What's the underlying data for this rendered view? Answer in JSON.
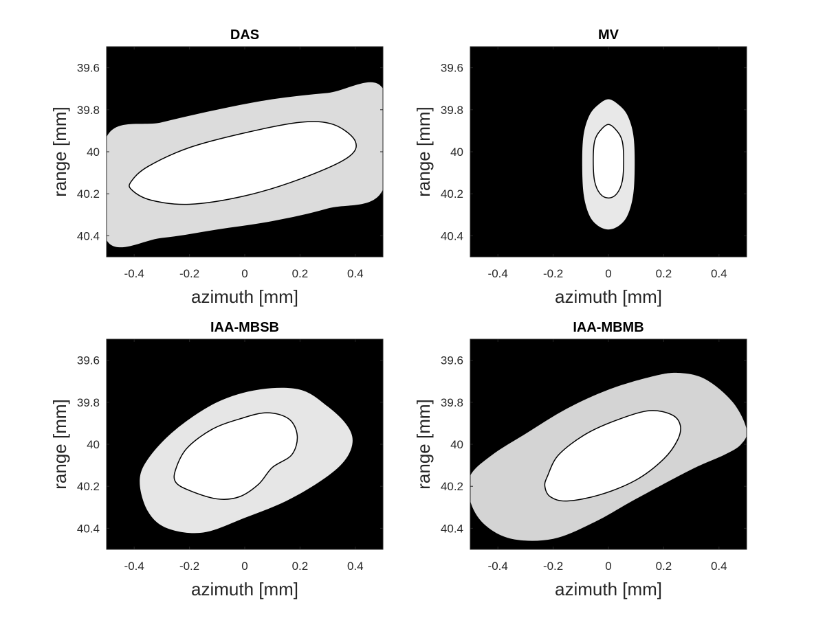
{
  "figure": {
    "background": "#ffffff",
    "axes_background": "#000000",
    "contour_color": "#000000"
  },
  "chart_data": [
    {
      "type": "contour",
      "title": "DAS",
      "xlabel": "azimuth [mm]",
      "ylabel": "range [mm]",
      "xlim": [
        -0.5,
        0.5
      ],
      "ylim": [
        39.5,
        40.5
      ],
      "y_reversed": true,
      "xticks": [
        -0.4,
        -0.2,
        0,
        0.2,
        0.4
      ],
      "xtick_labels": [
        "-0.4",
        "-0.2",
        "0",
        "0.2",
        "0.4"
      ],
      "yticks": [
        39.6,
        39.8,
        40,
        40.2,
        40.4
      ],
      "ytick_labels": [
        "39.6",
        "39.8",
        "40",
        "40.2",
        "40.4"
      ],
      "outer_region": {
        "fill": "#dcdcdc",
        "boundary": [
          [
            -0.5,
            39.93
          ],
          [
            -0.3,
            39.86
          ],
          [
            -0.1,
            39.8
          ],
          [
            0.1,
            39.75
          ],
          [
            0.3,
            39.72
          ],
          [
            0.5,
            39.7
          ],
          [
            0.5,
            40.18
          ],
          [
            0.3,
            40.27
          ],
          [
            0.1,
            40.33
          ],
          [
            -0.1,
            40.37
          ],
          [
            -0.3,
            40.41
          ],
          [
            -0.5,
            40.42
          ]
        ]
      },
      "inner_region": {
        "fill": "#ffffff",
        "boundary": [
          [
            -0.41,
            40.14
          ],
          [
            -0.35,
            40.07
          ],
          [
            -0.2,
            39.98
          ],
          [
            0.0,
            39.91
          ],
          [
            0.2,
            39.86
          ],
          [
            0.32,
            39.87
          ],
          [
            0.4,
            39.95
          ],
          [
            0.37,
            40.03
          ],
          [
            0.2,
            40.13
          ],
          [
            0.0,
            40.21
          ],
          [
            -0.2,
            40.25
          ],
          [
            -0.34,
            40.23
          ],
          [
            -0.41,
            40.18
          ]
        ]
      }
    },
    {
      "type": "contour",
      "title": "MV",
      "xlabel": "azimuth [mm]",
      "ylabel": "range [mm]",
      "xlim": [
        -0.5,
        0.5
      ],
      "ylim": [
        39.5,
        40.5
      ],
      "y_reversed": true,
      "xticks": [
        -0.4,
        -0.2,
        0,
        0.2,
        0.4
      ],
      "xtick_labels": [
        "-0.4",
        "-0.2",
        "0",
        "0.2",
        "0.4"
      ],
      "yticks": [
        39.6,
        39.8,
        40,
        40.2,
        40.4
      ],
      "ytick_labels": [
        "39.6",
        "39.8",
        "40",
        "40.2",
        "40.4"
      ],
      "outer_region": {
        "fill": "#e8e8e8",
        "boundary": [
          [
            -0.095,
            40.05
          ],
          [
            -0.09,
            39.92
          ],
          [
            -0.07,
            39.83
          ],
          [
            -0.04,
            39.78
          ],
          [
            0.0,
            39.75
          ],
          [
            0.04,
            39.78
          ],
          [
            0.07,
            39.83
          ],
          [
            0.09,
            39.92
          ],
          [
            0.095,
            40.05
          ],
          [
            0.09,
            40.2
          ],
          [
            0.07,
            40.3
          ],
          [
            0.04,
            40.35
          ],
          [
            0.0,
            40.37
          ],
          [
            -0.04,
            40.35
          ],
          [
            -0.07,
            40.3
          ],
          [
            -0.09,
            40.2
          ]
        ]
      },
      "inner_region": {
        "fill": "#ffffff",
        "boundary": [
          [
            -0.055,
            40.04
          ],
          [
            -0.05,
            39.95
          ],
          [
            -0.03,
            39.9
          ],
          [
            0.0,
            39.87
          ],
          [
            0.03,
            39.9
          ],
          [
            0.05,
            39.95
          ],
          [
            0.055,
            40.04
          ],
          [
            0.05,
            40.14
          ],
          [
            0.03,
            40.2
          ],
          [
            0.0,
            40.22
          ],
          [
            -0.03,
            40.2
          ],
          [
            -0.05,
            40.14
          ]
        ]
      }
    },
    {
      "type": "contour",
      "title": "IAA-MBSB",
      "xlabel": "azimuth [mm]",
      "ylabel": "range [mm]",
      "xlim": [
        -0.5,
        0.5
      ],
      "ylim": [
        39.5,
        40.5
      ],
      "y_reversed": true,
      "xticks": [
        -0.4,
        -0.2,
        0,
        0.2,
        0.4
      ],
      "xtick_labels": [
        "-0.4",
        "-0.2",
        "0",
        "0.2",
        "0.4"
      ],
      "yticks": [
        39.6,
        39.8,
        40,
        40.2,
        40.4
      ],
      "ytick_labels": [
        "39.6",
        "39.8",
        "40",
        "40.2",
        "40.4"
      ],
      "outer_region": {
        "fill": "#e6e6e6",
        "boundary": [
          [
            -0.38,
            40.18
          ],
          [
            -0.35,
            40.07
          ],
          [
            -0.25,
            39.93
          ],
          [
            -0.1,
            39.8
          ],
          [
            0.05,
            39.74
          ],
          [
            0.2,
            39.74
          ],
          [
            0.3,
            39.82
          ],
          [
            0.37,
            39.91
          ],
          [
            0.39,
            39.99
          ],
          [
            0.36,
            40.08
          ],
          [
            0.28,
            40.17
          ],
          [
            0.15,
            40.27
          ],
          [
            0.0,
            40.35
          ],
          [
            -0.15,
            40.42
          ],
          [
            -0.28,
            40.4
          ],
          [
            -0.35,
            40.32
          ]
        ]
      },
      "inner_region": {
        "fill": "#ffffff",
        "boundary": [
          [
            -0.25,
            40.12
          ],
          [
            -0.21,
            40.02
          ],
          [
            -0.12,
            39.93
          ],
          [
            -0.02,
            39.88
          ],
          [
            0.08,
            39.85
          ],
          [
            0.16,
            39.88
          ],
          [
            0.19,
            39.96
          ],
          [
            0.17,
            40.05
          ],
          [
            0.1,
            40.11
          ],
          [
            0.05,
            40.19
          ],
          [
            -0.02,
            40.25
          ],
          [
            -0.1,
            40.26
          ],
          [
            -0.2,
            40.22
          ],
          [
            -0.25,
            40.18
          ]
        ]
      }
    },
    {
      "type": "contour",
      "title": "IAA-MBMB",
      "xlabel": "azimuth [mm]",
      "ylabel": "range [mm]",
      "xlim": [
        -0.5,
        0.5
      ],
      "ylim": [
        39.5,
        40.5
      ],
      "y_reversed": true,
      "xticks": [
        -0.4,
        -0.2,
        0,
        0.2,
        0.4
      ],
      "xtick_labels": [
        "-0.4",
        "-0.2",
        "0",
        "0.2",
        "0.4"
      ],
      "yticks": [
        39.6,
        39.8,
        40,
        40.2,
        40.4
      ],
      "ytick_labels": [
        "39.6",
        "39.8",
        "40",
        "40.2",
        "40.4"
      ],
      "outer_region": {
        "fill": "#d4d4d4",
        "boundary": [
          [
            -0.5,
            40.15
          ],
          [
            -0.42,
            40.05
          ],
          [
            -0.3,
            39.95
          ],
          [
            -0.15,
            39.83
          ],
          [
            0.0,
            39.74
          ],
          [
            0.15,
            39.68
          ],
          [
            0.25,
            39.66
          ],
          [
            0.35,
            39.69
          ],
          [
            0.45,
            39.8
          ],
          [
            0.5,
            39.93
          ],
          [
            0.48,
            40.0
          ],
          [
            0.42,
            40.05
          ],
          [
            0.3,
            40.12
          ],
          [
            0.1,
            40.26
          ],
          [
            -0.05,
            40.37
          ],
          [
            -0.2,
            40.45
          ],
          [
            -0.35,
            40.45
          ],
          [
            -0.45,
            40.38
          ],
          [
            -0.5,
            40.27
          ]
        ]
      },
      "inner_region": {
        "fill": "#ffffff",
        "boundary": [
          [
            -0.22,
            40.15
          ],
          [
            -0.18,
            40.05
          ],
          [
            -0.08,
            39.95
          ],
          [
            0.04,
            39.88
          ],
          [
            0.15,
            39.84
          ],
          [
            0.23,
            39.86
          ],
          [
            0.26,
            39.91
          ],
          [
            0.25,
            39.98
          ],
          [
            0.2,
            40.07
          ],
          [
            0.1,
            40.17
          ],
          [
            -0.03,
            40.24
          ],
          [
            -0.15,
            40.27
          ],
          [
            -0.21,
            40.25
          ],
          [
            -0.23,
            40.2
          ]
        ]
      }
    }
  ]
}
